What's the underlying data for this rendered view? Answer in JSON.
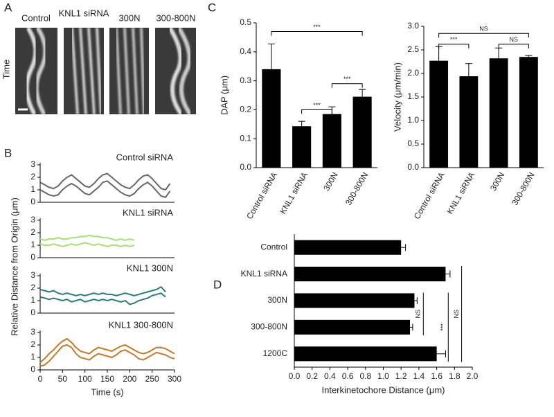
{
  "panel_labels": [
    "A",
    "B",
    "C",
    "D"
  ],
  "kymographs": {
    "labels": [
      "Control",
      "KNL1 siRNA",
      "300N",
      "300-800N"
    ],
    "axis_label": "Time"
  },
  "chart_data": [
    {
      "type": "line",
      "title": "Control siRNA",
      "ylabel": "Relative Distance from Origin (μm)",
      "x": [
        0,
        10,
        20,
        30,
        40,
        50,
        60,
        70,
        80,
        90,
        100,
        110,
        120,
        130,
        140,
        150,
        160,
        170,
        180,
        190,
        200,
        210,
        220,
        230,
        240,
        250,
        260,
        270,
        280,
        290
      ],
      "series": [
        {
          "color": "#666666",
          "values": [
            1.6,
            1.4,
            1.2,
            1.1,
            1.3,
            1.7,
            2.0,
            2.2,
            1.9,
            1.6,
            1.3,
            1.2,
            1.5,
            1.9,
            2.2,
            2.3,
            2.0,
            1.7,
            1.4,
            1.2,
            1.1,
            1.4,
            1.8,
            2.1,
            2.2,
            1.9,
            1.5,
            1.1,
            1.0,
            1.5
          ]
        },
        {
          "color": "#666666",
          "values": [
            1.0,
            0.8,
            0.6,
            0.5,
            0.6,
            1.0,
            1.3,
            1.5,
            1.3,
            1.0,
            0.7,
            0.6,
            0.9,
            1.2,
            1.6,
            1.7,
            1.4,
            1.1,
            0.8,
            0.6,
            0.5,
            0.7,
            1.1,
            1.4,
            1.6,
            1.3,
            0.9,
            0.5,
            0.4,
            0.9
          ]
        }
      ],
      "xlim": [
        0,
        300
      ],
      "ylim": [
        0,
        3
      ],
      "yticks": [
        0,
        1,
        2,
        3
      ]
    },
    {
      "type": "line",
      "title": "KNL1 siRNA",
      "x": [
        0,
        10,
        20,
        30,
        40,
        50,
        60,
        70,
        80,
        90,
        100,
        110,
        120,
        130,
        140,
        150,
        160,
        170,
        180,
        190,
        200,
        210
      ],
      "series": [
        {
          "color": "#a6df7a",
          "values": [
            1.5,
            1.4,
            1.5,
            1.5,
            1.6,
            1.5,
            1.5,
            1.6,
            1.6,
            1.7,
            1.7,
            1.8,
            1.7,
            1.7,
            1.6,
            1.6,
            1.5,
            1.4,
            1.5,
            1.4,
            1.5,
            1.4
          ]
        },
        {
          "color": "#a6df7a",
          "values": [
            1.1,
            1.0,
            1.0,
            1.1,
            1.0,
            0.9,
            1.0,
            1.1,
            1.0,
            1.1,
            1.2,
            1.1,
            1.0,
            1.1,
            1.0,
            0.9,
            1.0,
            1.0,
            0.9,
            1.0,
            0.9,
            1.0
          ]
        }
      ],
      "xlim": [
        0,
        300
      ],
      "ylim": [
        0,
        3
      ],
      "yticks": [
        0,
        1,
        2,
        3
      ]
    },
    {
      "type": "line",
      "title": "KNL1 300N",
      "x": [
        0,
        10,
        20,
        30,
        40,
        50,
        60,
        70,
        80,
        90,
        100,
        110,
        120,
        130,
        140,
        150,
        160,
        170,
        180,
        190,
        200,
        210,
        220,
        230,
        240,
        250,
        260,
        270,
        280
      ],
      "series": [
        {
          "color": "#2e7a78",
          "values": [
            1.9,
            1.8,
            1.7,
            1.8,
            1.6,
            1.5,
            1.6,
            1.5,
            1.4,
            1.5,
            1.4,
            1.5,
            1.6,
            1.5,
            1.6,
            1.5,
            1.5,
            1.4,
            1.5,
            1.6,
            1.5,
            1.4,
            1.5,
            1.6,
            1.7,
            1.8,
            1.9,
            2.1,
            1.7
          ]
        },
        {
          "color": "#2e7a78",
          "values": [
            1.3,
            1.2,
            1.1,
            1.2,
            1.1,
            1.0,
            1.1,
            0.9,
            1.0,
            1.1,
            0.9,
            1.0,
            1.1,
            1.0,
            1.1,
            1.0,
            1.1,
            1.0,
            0.9,
            1.0,
            0.7,
            0.8,
            1.0,
            1.1,
            1.2,
            1.4,
            1.5,
            1.6,
            1.3
          ]
        }
      ],
      "xlim": [
        0,
        300
      ],
      "ylim": [
        0,
        3
      ],
      "yticks": [
        0,
        1,
        2,
        3
      ]
    },
    {
      "type": "line",
      "title": "KNL1 300-800N",
      "xlabel": "Time (s)",
      "x": [
        0,
        10,
        20,
        30,
        40,
        50,
        60,
        70,
        80,
        90,
        100,
        110,
        120,
        130,
        140,
        150,
        160,
        170,
        180,
        190,
        200,
        210,
        220,
        230,
        240,
        250,
        260,
        270,
        280,
        290,
        300
      ],
      "series": [
        {
          "color": "#c07a2a",
          "values": [
            0.6,
            0.9,
            1.3,
            1.6,
            2.0,
            2.3,
            2.5,
            2.2,
            1.8,
            1.5,
            1.4,
            1.3,
            1.6,
            1.8,
            1.7,
            1.6,
            1.5,
            1.7,
            1.9,
            2.0,
            1.8,
            1.6,
            1.4,
            1.3,
            1.4,
            1.6,
            1.8,
            1.8,
            1.7,
            1.5,
            1.3
          ]
        },
        {
          "color": "#c07a2a",
          "values": [
            0.3,
            0.4,
            0.7,
            1.1,
            1.5,
            1.9,
            2.0,
            1.8,
            1.3,
            1.0,
            0.9,
            0.8,
            1.1,
            1.3,
            1.2,
            1.1,
            1.0,
            1.2,
            1.5,
            1.6,
            1.4,
            1.2,
            0.9,
            0.8,
            1.0,
            1.2,
            1.4,
            1.3,
            1.2,
            1.0,
            0.9
          ]
        }
      ],
      "xlim": [
        0,
        300
      ],
      "xticks": [
        0,
        50,
        100,
        150,
        200,
        250,
        300
      ],
      "ylim": [
        0,
        3
      ],
      "yticks": [
        0,
        1,
        2,
        3
      ]
    },
    {
      "type": "bar",
      "ylabel": "DAP (μm)",
      "categories": [
        "Control siRNA",
        "KNL1 siRNA",
        "300N",
        "300-800N"
      ],
      "values": [
        0.34,
        0.143,
        0.185,
        0.245
      ],
      "errors": [
        0.087,
        0.017,
        0.025,
        0.025
      ],
      "color": "#000000",
      "ylim": [
        0,
        0.5
      ],
      "yticks": [
        {
          "value": 0,
          "label": "0.0"
        },
        0.1,
        0.2,
        0.3,
        0.4,
        0.5
      ],
      "annotations": [
        "***",
        "***",
        "***"
      ]
    },
    {
      "type": "bar",
      "ylabel": "Velocity (μm/min)",
      "categories": [
        "Control siRNA",
        "KNL1 siRNA",
        "300N",
        "300-800N"
      ],
      "values": [
        2.27,
        1.94,
        2.32,
        2.35
      ],
      "errors": [
        0.3,
        0.27,
        0.22,
        0.03
      ],
      "color": "#000000",
      "ylim": [
        0,
        3
      ],
      "yticks": [
        {
          "value": 0,
          "label": "0.0"
        },
        0.5,
        {
          "value": 1,
          "label": "1.0"
        },
        1.5,
        {
          "value": 2,
          "label": "2.0"
        },
        2.5,
        {
          "value": 3,
          "label": "3.0"
        }
      ],
      "annotations": [
        "NS",
        "***",
        "NS"
      ]
    },
    {
      "type": "hbar",
      "xlabel": "Interkinetochore Distance (μm)",
      "categories": [
        "Control",
        "KNL1 siRNA",
        "300N",
        "300-800N",
        "1200C"
      ],
      "values": [
        1.2,
        1.7,
        1.35,
        1.3,
        1.6
      ],
      "errors": [
        0.05,
        0.05,
        0.03,
        0.03,
        0.1
      ],
      "color": "#000000",
      "xlim": [
        0,
        2
      ],
      "xticks": [
        {
          "value": 0,
          "label": "0.0"
        },
        0.2,
        0.4,
        0.6,
        0.8,
        {
          "value": 1,
          "label": "1.0"
        },
        1.2,
        1.4,
        1.6,
        1.8,
        {
          "value": 2,
          "label": "2.0"
        }
      ],
      "annotations": [
        "NS",
        "***",
        "NS"
      ]
    }
  ]
}
